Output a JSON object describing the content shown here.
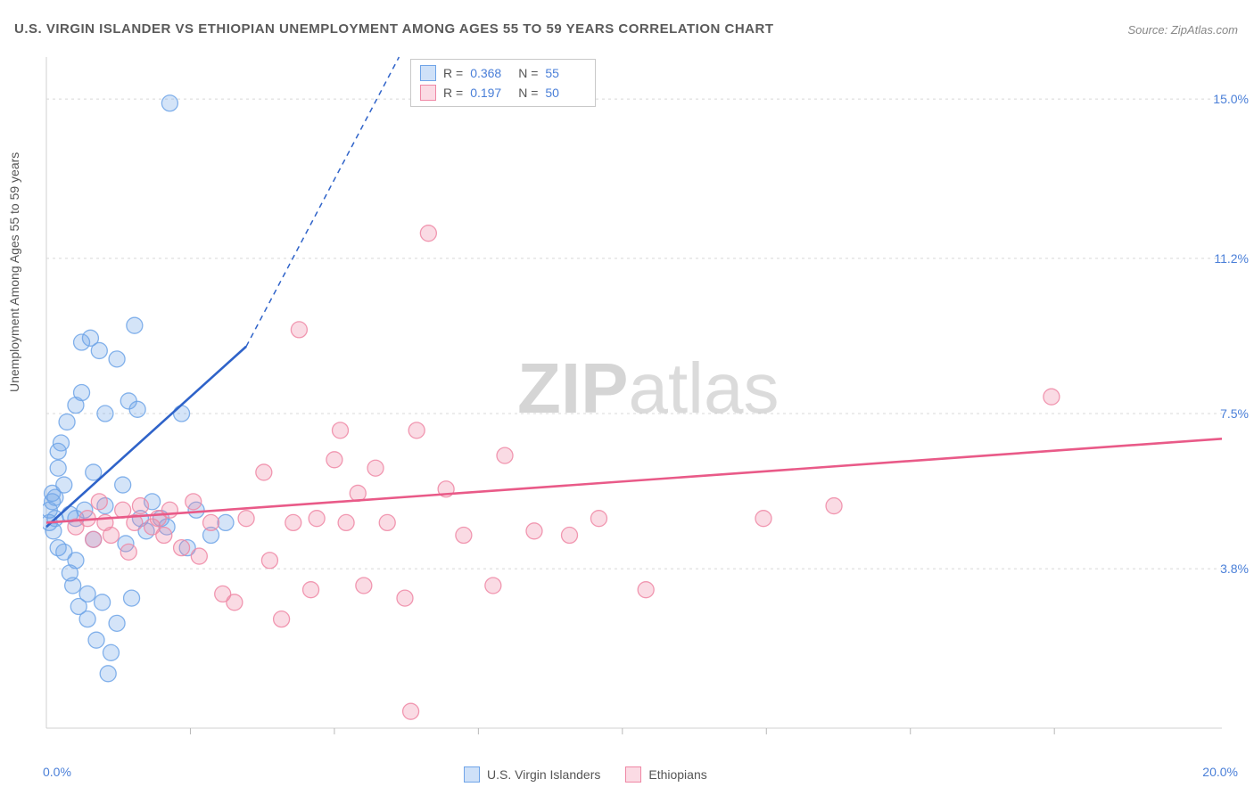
{
  "title": "U.S. VIRGIN ISLANDER VS ETHIOPIAN UNEMPLOYMENT AMONG AGES 55 TO 59 YEARS CORRELATION CHART",
  "source": "Source: ZipAtlas.com",
  "y_axis_label": "Unemployment Among Ages 55 to 59 years",
  "watermark_part1": "ZIP",
  "watermark_part2": "atlas",
  "chart": {
    "type": "scatter",
    "background_color": "#ffffff",
    "grid_color": "#d8d8d8",
    "axis_color": "#d0d0d0",
    "xlim": [
      0.0,
      20.0
    ],
    "ylim": [
      0.0,
      16.0
    ],
    "x_ticks": [
      0.0,
      20.0
    ],
    "x_tick_labels": [
      "0.0%",
      "20.0%"
    ],
    "y_ticks": [
      3.8,
      7.5,
      11.2,
      15.0
    ],
    "y_tick_labels": [
      "3.8%",
      "7.5%",
      "11.2%",
      "15.0%"
    ],
    "x_tick_minor": [
      2.45,
      4.9,
      7.35,
      9.8,
      12.25,
      14.7,
      17.15
    ],
    "marker_radius": 9,
    "marker_fill_opacity": 0.3,
    "marker_stroke_opacity": 0.85,
    "marker_stroke_width": 1.3,
    "trend_line_width": 2.6,
    "trend_dash_pattern": "6,5",
    "series": [
      {
        "name": "U.S. Virgin Islanders",
        "color": "#6fa4e8",
        "trend_color": "#2f63c9",
        "R_label": "R =",
        "R": "0.368",
        "N_label": "N =",
        "N": "55",
        "trend_solid": {
          "x1": 0.0,
          "y1": 4.8,
          "x2": 3.4,
          "y2": 9.1
        },
        "trend_dash": {
          "x1": 3.4,
          "y1": 9.1,
          "x2": 6.0,
          "y2": 16.0
        },
        "points": [
          [
            0.05,
            4.9
          ],
          [
            0.05,
            5.2
          ],
          [
            0.1,
            5.4
          ],
          [
            0.1,
            5.6
          ],
          [
            0.12,
            4.7
          ],
          [
            0.15,
            5.0
          ],
          [
            0.15,
            5.5
          ],
          [
            0.2,
            6.2
          ],
          [
            0.2,
            6.6
          ],
          [
            0.2,
            4.3
          ],
          [
            0.25,
            6.8
          ],
          [
            0.3,
            5.8
          ],
          [
            0.3,
            4.2
          ],
          [
            0.35,
            7.3
          ],
          [
            0.4,
            5.1
          ],
          [
            0.4,
            3.7
          ],
          [
            0.45,
            3.4
          ],
          [
            0.5,
            7.7
          ],
          [
            0.5,
            5.0
          ],
          [
            0.5,
            4.0
          ],
          [
            0.55,
            2.9
          ],
          [
            0.6,
            9.2
          ],
          [
            0.6,
            8.0
          ],
          [
            0.65,
            5.2
          ],
          [
            0.7,
            3.2
          ],
          [
            0.7,
            2.6
          ],
          [
            0.75,
            9.3
          ],
          [
            0.8,
            6.1
          ],
          [
            0.8,
            4.5
          ],
          [
            0.85,
            2.1
          ],
          [
            0.9,
            9.0
          ],
          [
            0.95,
            3.0
          ],
          [
            1.0,
            7.5
          ],
          [
            1.0,
            5.3
          ],
          [
            1.05,
            1.3
          ],
          [
            1.1,
            1.8
          ],
          [
            1.2,
            8.8
          ],
          [
            1.2,
            2.5
          ],
          [
            1.3,
            5.8
          ],
          [
            1.35,
            4.4
          ],
          [
            1.4,
            7.8
          ],
          [
            1.45,
            3.1
          ],
          [
            1.5,
            9.6
          ],
          [
            1.55,
            7.6
          ],
          [
            1.6,
            5.0
          ],
          [
            1.7,
            4.7
          ],
          [
            1.8,
            5.4
          ],
          [
            1.95,
            5.0
          ],
          [
            2.05,
            4.8
          ],
          [
            2.1,
            14.9
          ],
          [
            2.3,
            7.5
          ],
          [
            2.4,
            4.3
          ],
          [
            2.55,
            5.2
          ],
          [
            2.8,
            4.6
          ],
          [
            3.05,
            4.9
          ]
        ]
      },
      {
        "name": "Ethiopians",
        "color": "#ef87a5",
        "trend_color": "#e95a88",
        "R_label": "R =",
        "R": "0.197",
        "N_label": "N =",
        "N": "50",
        "trend_solid": {
          "x1": 0.0,
          "y1": 4.9,
          "x2": 20.0,
          "y2": 6.9
        },
        "trend_dash": null,
        "points": [
          [
            0.5,
            4.8
          ],
          [
            0.7,
            5.0
          ],
          [
            0.8,
            4.5
          ],
          [
            0.9,
            5.4
          ],
          [
            1.0,
            4.9
          ],
          [
            1.1,
            4.6
          ],
          [
            1.3,
            5.2
          ],
          [
            1.4,
            4.2
          ],
          [
            1.5,
            4.9
          ],
          [
            1.6,
            5.3
          ],
          [
            1.8,
            4.8
          ],
          [
            1.9,
            5.0
          ],
          [
            2.0,
            4.6
          ],
          [
            2.1,
            5.2
          ],
          [
            2.3,
            4.3
          ],
          [
            2.5,
            5.4
          ],
          [
            2.6,
            4.1
          ],
          [
            2.8,
            4.9
          ],
          [
            3.0,
            3.2
          ],
          [
            3.2,
            3.0
          ],
          [
            3.4,
            5.0
          ],
          [
            3.7,
            6.1
          ],
          [
            3.8,
            4.0
          ],
          [
            4.0,
            2.6
          ],
          [
            4.2,
            4.9
          ],
          [
            4.3,
            9.5
          ],
          [
            4.5,
            3.3
          ],
          [
            4.6,
            5.0
          ],
          [
            4.9,
            6.4
          ],
          [
            5.0,
            7.1
          ],
          [
            5.1,
            4.9
          ],
          [
            5.3,
            5.6
          ],
          [
            5.4,
            3.4
          ],
          [
            5.6,
            6.2
          ],
          [
            5.8,
            4.9
          ],
          [
            6.1,
            3.1
          ],
          [
            6.2,
            0.4
          ],
          [
            6.3,
            7.1
          ],
          [
            6.5,
            11.8
          ],
          [
            6.8,
            5.7
          ],
          [
            7.1,
            4.6
          ],
          [
            7.6,
            3.4
          ],
          [
            7.8,
            6.5
          ],
          [
            8.3,
            4.7
          ],
          [
            8.9,
            4.6
          ],
          [
            9.4,
            5.0
          ],
          [
            10.2,
            3.3
          ],
          [
            12.2,
            5.0
          ],
          [
            13.4,
            5.3
          ],
          [
            17.1,
            7.9
          ]
        ]
      }
    ]
  },
  "bottom_legend": [
    {
      "label": "U.S. Virgin Islanders",
      "fill": "#cfe1f8",
      "stroke": "#6fa4e8"
    },
    {
      "label": "Ethiopians",
      "fill": "#fbdbe4",
      "stroke": "#ef87a5"
    }
  ]
}
